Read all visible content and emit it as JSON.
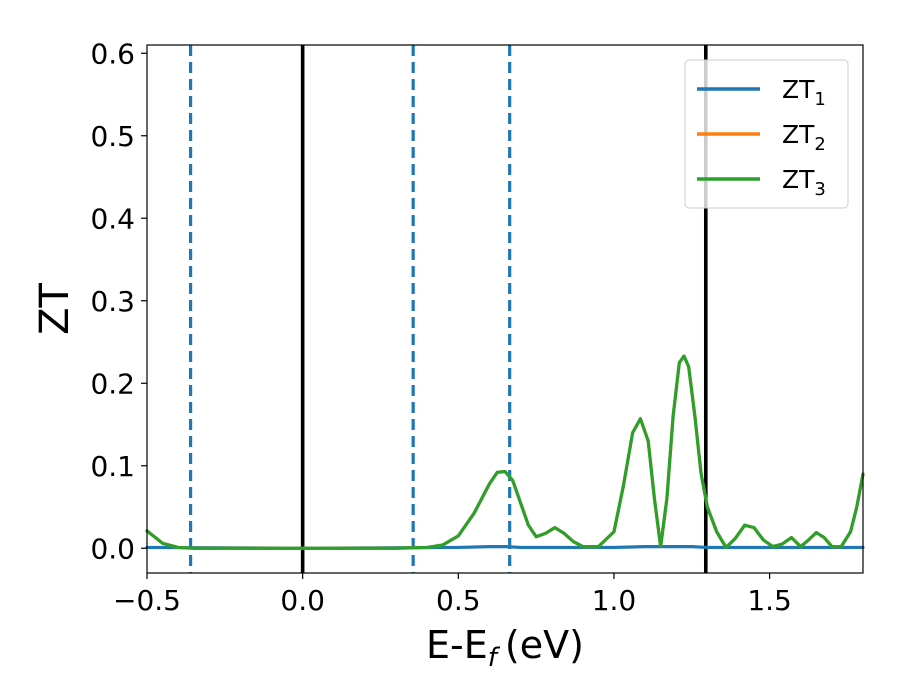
{
  "chart_data": {
    "type": "line",
    "xlabel": "E-E",
    "xlabel_sub": "f",
    "xlabel_unit": "(eV)",
    "ylabel": "ZT",
    "xlim": [
      -0.5,
      1.8
    ],
    "ylim": [
      -0.03,
      0.61
    ],
    "xticks": [
      -0.5,
      0.0,
      0.5,
      1.0,
      1.5
    ],
    "xtick_labels": [
      "−0.5",
      "0.0",
      "0.5",
      "1.0",
      "1.5"
    ],
    "yticks": [
      0.0,
      0.1,
      0.2,
      0.3,
      0.4,
      0.5,
      0.6
    ],
    "ytick_labels": [
      "0.0",
      "0.1",
      "0.2",
      "0.3",
      "0.4",
      "0.5",
      "0.6"
    ],
    "grid": false,
    "legend_position": "top-right",
    "vlines": [
      {
        "x": -0.36,
        "style": "dashed",
        "color": "#1f77b4"
      },
      {
        "x": 0.0,
        "style": "solid",
        "color": "#000000"
      },
      {
        "x": 0.355,
        "style": "dashed",
        "color": "#1f77b4"
      },
      {
        "x": 0.665,
        "style": "dashed",
        "color": "#1f77b4"
      },
      {
        "x": 1.295,
        "style": "solid",
        "color": "#000000"
      }
    ],
    "series": [
      {
        "name": "ZT",
        "subscript": "1",
        "color": "#1f77b4",
        "x": [
          -0.5,
          0.0,
          0.5,
          0.6,
          0.65,
          0.7,
          0.8,
          1.0,
          1.1,
          1.2,
          1.25,
          1.3,
          1.4,
          1.5,
          1.6,
          1.7,
          1.8
        ],
        "y": [
          0.001,
          0.0,
          0.001,
          0.002,
          0.002,
          0.001,
          0.001,
          0.001,
          0.002,
          0.002,
          0.002,
          0.001,
          0.001,
          0.001,
          0.001,
          0.001,
          0.001
        ]
      },
      {
        "name": "ZT",
        "subscript": "2",
        "color": "#ff7f0e",
        "x": [
          -0.5,
          -0.45,
          -0.4,
          -0.35,
          -0.3,
          0.0,
          0.3,
          0.4,
          0.45,
          0.5,
          0.55,
          0.6,
          0.625,
          0.65,
          0.675,
          0.7,
          0.725,
          0.75,
          0.78,
          0.81,
          0.84,
          0.87,
          0.9,
          0.95,
          1.0,
          1.03,
          1.06,
          1.085,
          1.11,
          1.13,
          1.15,
          1.17,
          1.19,
          1.21,
          1.225,
          1.24,
          1.26,
          1.28,
          1.3,
          1.33,
          1.36,
          1.39,
          1.42,
          1.45,
          1.48,
          1.51,
          1.54,
          1.57,
          1.6,
          1.625,
          1.65,
          1.675,
          1.7,
          1.73,
          1.76,
          1.78,
          1.8
        ],
        "y": [
          0.021,
          0.006,
          0.001,
          0.0,
          0.0,
          0.0,
          0.0,
          0.001,
          0.004,
          0.015,
          0.042,
          0.078,
          0.092,
          0.093,
          0.082,
          0.055,
          0.028,
          0.014,
          0.018,
          0.025,
          0.018,
          0.008,
          0.002,
          0.002,
          0.02,
          0.075,
          0.14,
          0.157,
          0.13,
          0.06,
          0.002,
          0.06,
          0.16,
          0.225,
          0.233,
          0.22,
          0.16,
          0.09,
          0.05,
          0.02,
          0.001,
          0.012,
          0.028,
          0.025,
          0.01,
          0.002,
          0.005,
          0.013,
          0.002,
          0.01,
          0.019,
          0.013,
          0.002,
          0.002,
          0.02,
          0.05,
          0.09
        ]
      },
      {
        "name": "ZT",
        "subscript": "3",
        "color": "#2ca02c",
        "x": [
          -0.5,
          -0.45,
          -0.4,
          -0.35,
          -0.3,
          0.0,
          0.3,
          0.4,
          0.45,
          0.5,
          0.55,
          0.6,
          0.625,
          0.65,
          0.675,
          0.7,
          0.725,
          0.75,
          0.78,
          0.81,
          0.84,
          0.87,
          0.9,
          0.95,
          1.0,
          1.03,
          1.06,
          1.085,
          1.11,
          1.13,
          1.15,
          1.17,
          1.19,
          1.21,
          1.225,
          1.24,
          1.26,
          1.28,
          1.3,
          1.33,
          1.36,
          1.39,
          1.42,
          1.45,
          1.48,
          1.51,
          1.54,
          1.57,
          1.6,
          1.625,
          1.65,
          1.675,
          1.7,
          1.73,
          1.76,
          1.78,
          1.8
        ],
        "y": [
          0.021,
          0.006,
          0.001,
          0.0,
          0.0,
          0.0,
          0.0,
          0.001,
          0.004,
          0.015,
          0.042,
          0.078,
          0.092,
          0.093,
          0.082,
          0.055,
          0.028,
          0.014,
          0.018,
          0.025,
          0.018,
          0.008,
          0.002,
          0.002,
          0.02,
          0.075,
          0.14,
          0.157,
          0.13,
          0.06,
          0.002,
          0.06,
          0.16,
          0.225,
          0.233,
          0.22,
          0.16,
          0.09,
          0.05,
          0.02,
          0.001,
          0.012,
          0.028,
          0.025,
          0.01,
          0.002,
          0.005,
          0.013,
          0.002,
          0.01,
          0.019,
          0.013,
          0.002,
          0.002,
          0.02,
          0.05,
          0.09
        ]
      }
    ]
  }
}
